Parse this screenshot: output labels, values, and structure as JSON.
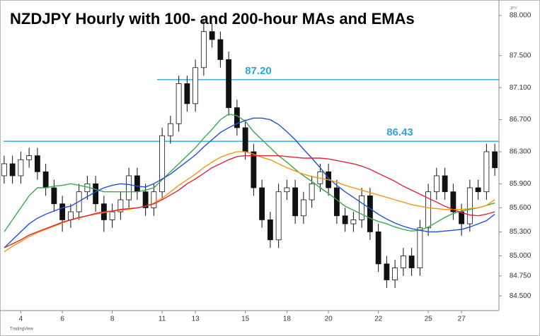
{
  "chart_data": {
    "type": "candlestick",
    "title": "NZDJPY Hourly with 100- and 200-hour MAs and EMAs",
    "currency": "JPY",
    "watermark": "TradingView",
    "categories": [
      null,
      null,
      "4",
      null,
      null,
      null,
      null,
      "6",
      null,
      null,
      null,
      null,
      null,
      "8",
      null,
      null,
      null,
      null,
      null,
      "11",
      null,
      null,
      null,
      "13",
      null,
      null,
      null,
      null,
      null,
      "15",
      null,
      null,
      null,
      null,
      "18",
      null,
      null,
      null,
      null,
      "20",
      null,
      null,
      null,
      null,
      null,
      "22",
      null,
      null,
      null,
      null,
      null,
      "25",
      null,
      null,
      null,
      "27",
      null,
      null,
      null,
      null
    ],
    "open": [
      86.0,
      86.15,
      86.0,
      86.2,
      86.25,
      86.05,
      85.85,
      85.65,
      85.45,
      85.55,
      85.8,
      85.9,
      85.65,
      85.45,
      85.55,
      85.7,
      86.0,
      85.8,
      85.6,
      85.8,
      86.5,
      86.65,
      87.15,
      86.9,
      87.35,
      87.8,
      87.7,
      87.45,
      86.85,
      86.6,
      86.3,
      85.85,
      85.45,
      85.2,
      85.8,
      85.85,
      85.5,
      85.7,
      85.9,
      86.05,
      85.85,
      85.5,
      85.4,
      85.45,
      85.75,
      85.3,
      84.9,
      84.7,
      84.85,
      85.0,
      84.85,
      85.35,
      85.8,
      86.0,
      85.8,
      85.55,
      85.4,
      85.85,
      85.8,
      86.3
    ],
    "high": [
      86.25,
      86.25,
      86.3,
      86.35,
      86.35,
      86.15,
      85.95,
      85.75,
      85.65,
      85.9,
      86.0,
      86.0,
      85.75,
      85.65,
      85.8,
      86.1,
      86.1,
      85.9,
      85.9,
      86.6,
      86.75,
      87.25,
      87.25,
      87.45,
      87.95,
      87.9,
      87.8,
      87.55,
      86.95,
      86.7,
      86.4,
      85.95,
      85.55,
      85.9,
      85.95,
      85.95,
      85.8,
      86.0,
      86.15,
      86.15,
      85.95,
      85.6,
      85.55,
      85.85,
      85.85,
      85.4,
      85.0,
      84.95,
      85.1,
      85.1,
      85.45,
      85.9,
      86.1,
      86.1,
      85.9,
      85.65,
      85.95,
      85.95,
      86.4,
      86.4
    ],
    "low": [
      85.9,
      85.9,
      85.9,
      86.1,
      85.95,
      85.75,
      85.55,
      85.3,
      85.35,
      85.45,
      85.7,
      85.55,
      85.3,
      85.35,
      85.45,
      85.6,
      85.7,
      85.5,
      85.5,
      85.7,
      86.4,
      86.55,
      86.8,
      86.8,
      87.25,
      87.6,
      87.35,
      86.75,
      86.5,
      86.2,
      85.75,
      85.35,
      85.1,
      85.1,
      85.7,
      85.4,
      85.4,
      85.6,
      85.8,
      85.75,
      85.4,
      85.3,
      85.3,
      85.35,
      85.2,
      84.8,
      84.6,
      84.6,
      84.75,
      84.75,
      84.75,
      85.25,
      85.7,
      85.7,
      85.45,
      85.25,
      85.3,
      85.7,
      85.7,
      86.0
    ],
    "close": [
      86.15,
      86.0,
      86.2,
      86.25,
      86.05,
      85.85,
      85.65,
      85.45,
      85.55,
      85.8,
      85.9,
      85.65,
      85.45,
      85.55,
      85.7,
      86.0,
      85.8,
      85.6,
      85.8,
      86.5,
      86.65,
      87.15,
      86.9,
      87.35,
      87.8,
      87.7,
      87.45,
      86.85,
      86.6,
      86.3,
      85.85,
      85.45,
      85.2,
      85.8,
      85.85,
      85.5,
      85.7,
      85.9,
      86.05,
      85.85,
      85.5,
      85.4,
      85.45,
      85.75,
      85.3,
      84.9,
      84.7,
      84.85,
      85.0,
      84.85,
      85.35,
      85.8,
      86.0,
      85.8,
      85.55,
      85.4,
      85.85,
      85.8,
      86.3,
      86.1
    ],
    "up_color": "#ffffff",
    "down_color": "#111111",
    "series": [
      {
        "color": "#3aa84a",
        "values": [
          85.3,
          85.45,
          85.6,
          85.75,
          85.85,
          85.85,
          85.87,
          85.88,
          85.9,
          85.88,
          85.86,
          85.83,
          85.8,
          85.8,
          85.8,
          85.8,
          85.8,
          85.82,
          85.85,
          85.95,
          86.05,
          86.15,
          86.25,
          86.35,
          86.47,
          86.58,
          86.7,
          86.77,
          86.75,
          86.68,
          86.55,
          86.45,
          86.35,
          86.25,
          86.17,
          86.08,
          86.0,
          85.93,
          85.85,
          85.78,
          85.7,
          85.62,
          85.57,
          85.52,
          85.47,
          85.43,
          85.4,
          85.36,
          85.33,
          85.31,
          85.32,
          85.36,
          85.42,
          85.48,
          85.53,
          85.56,
          85.58,
          85.6,
          85.63,
          85.66
        ]
      },
      {
        "color": "#2050d8",
        "values": [
          85.1,
          85.2,
          85.3,
          85.4,
          85.47,
          85.52,
          85.56,
          85.6,
          85.62,
          85.68,
          85.74,
          85.8,
          85.85,
          85.88,
          85.9,
          85.89,
          85.87,
          85.86,
          85.9,
          85.96,
          86.02,
          86.1,
          86.18,
          86.26,
          86.36,
          86.45,
          86.54,
          86.6,
          86.65,
          86.69,
          86.72,
          86.72,
          86.7,
          86.64,
          86.55,
          86.45,
          86.33,
          86.22,
          86.1,
          85.97,
          85.88,
          85.8,
          85.73,
          85.66,
          85.59,
          85.52,
          85.46,
          85.41,
          85.37,
          85.34,
          85.32,
          85.3,
          85.3,
          85.31,
          85.32,
          85.33,
          85.36,
          85.4,
          85.44,
          85.52
        ]
      },
      {
        "color": "#f5960f",
        "values": [
          85.05,
          85.12,
          85.18,
          85.24,
          85.29,
          85.33,
          85.37,
          85.41,
          85.45,
          85.47,
          85.5,
          85.52,
          85.54,
          85.56,
          85.57,
          85.58,
          85.6,
          85.62,
          85.66,
          85.72,
          85.8,
          85.88,
          85.95,
          86.02,
          86.1,
          86.17,
          86.23,
          86.27,
          86.3,
          86.3,
          86.27,
          86.23,
          86.2,
          86.15,
          86.1,
          86.06,
          86.02,
          85.99,
          85.97,
          85.95,
          85.92,
          85.88,
          85.85,
          85.82,
          85.79,
          85.76,
          85.73,
          85.7,
          85.67,
          85.64,
          85.62,
          85.6,
          85.59,
          85.58,
          85.58,
          85.58,
          85.59,
          85.6,
          85.63,
          85.7
        ]
      },
      {
        "color": "#e0243a",
        "values": [
          85.1,
          85.15,
          85.2,
          85.26,
          85.3,
          85.34,
          85.38,
          85.42,
          85.45,
          85.48,
          85.5,
          85.53,
          85.55,
          85.56,
          85.58,
          85.59,
          85.6,
          85.62,
          85.65,
          85.7,
          85.76,
          85.82,
          85.9,
          85.96,
          86.03,
          86.1,
          86.15,
          86.2,
          86.24,
          86.25,
          86.25,
          86.25,
          86.25,
          86.25,
          86.24,
          86.23,
          86.22,
          86.22,
          86.22,
          86.21,
          86.19,
          86.17,
          86.15,
          86.12,
          86.08,
          86.03,
          85.98,
          85.93,
          85.87,
          85.82,
          85.77,
          85.72,
          85.67,
          85.62,
          85.58,
          85.54,
          85.51,
          85.5,
          85.52,
          85.55
        ]
      }
    ],
    "hlines": [
      {
        "value": 87.2,
        "label": "87.20",
        "color": "#29a8e0"
      },
      {
        "value": 86.43,
        "label": "86.43",
        "color": "#29a8e0"
      }
    ],
    "ylim": [
      84.317,
      88.194
    ],
    "yticks": [
      {
        "value": 84.5,
        "label": "84.500"
      },
      {
        "value": 84.75,
        "label": "84.750"
      },
      {
        "value": 85,
        "label": "85.000"
      },
      {
        "value": 85.3,
        "label": "85.300"
      },
      {
        "value": 85.6,
        "label": "85.600"
      },
      {
        "value": 85.9,
        "label": "85.900"
      },
      {
        "value": 86.3,
        "label": "86.300"
      },
      {
        "value": 86.7,
        "label": "86.700"
      },
      {
        "value": 87.1,
        "label": "87.100"
      },
      {
        "value": 87.5,
        "label": "87.500"
      },
      {
        "value": 88,
        "label": "88.000"
      }
    ],
    "grid": false
  }
}
